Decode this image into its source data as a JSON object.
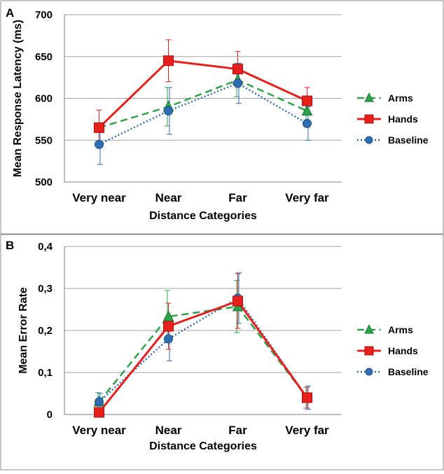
{
  "chart_data": [
    {
      "panel_label": "A",
      "type": "line",
      "title": "",
      "xlabel": "Distance Categories",
      "ylabel": "Mean Response Latency (ms)",
      "categories": [
        "Very near",
        "Near",
        "Far",
        "Very far"
      ],
      "ylim": [
        500,
        700
      ],
      "yticks": [
        500,
        550,
        600,
        650,
        700
      ],
      "ytick_labels": [
        "500",
        "550",
        "600",
        "650",
        "700"
      ],
      "grid": true,
      "legend": "right",
      "series": [
        {
          "name": "Arms",
          "values": [
            565,
            590,
            622,
            585
          ],
          "errors": [
            null,
            23,
            20,
            18
          ],
          "color": "#2ca34a",
          "marker": "triangle",
          "dash": "dashed"
        },
        {
          "name": "Hands",
          "values": [
            565,
            645,
            635,
            597
          ],
          "errors": [
            21,
            25,
            21,
            16
          ],
          "color": "#e8201c",
          "marker": "square",
          "dash": "solid"
        },
        {
          "name": "Baseline",
          "values": [
            545,
            585,
            618,
            570
          ],
          "errors": [
            24,
            28,
            24,
            20
          ],
          "color": "#2f6eb5",
          "marker": "circle",
          "dash": "dotted"
        }
      ]
    },
    {
      "panel_label": "B",
      "type": "line",
      "title": "",
      "xlabel": "Distance Categories",
      "ylabel": "Mean Error Rate",
      "categories": [
        "Very near",
        "Near",
        "Far",
        "Very far"
      ],
      "ylim": [
        0,
        0.4
      ],
      "yticks": [
        0,
        0.1,
        0.2,
        0.3,
        0.4
      ],
      "ytick_labels": [
        "0",
        "0,1",
        "0,2",
        "0,3",
        "0,4"
      ],
      "grid": true,
      "legend": "right",
      "series": [
        {
          "name": "Arms",
          "values": [
            0.03,
            0.233,
            0.257,
            0.04
          ],
          "errors": [
            0.022,
            0.062,
            0.062,
            0.025
          ],
          "color": "#2ca34a",
          "marker": "triangle",
          "dash": "dashed"
        },
        {
          "name": "Hands",
          "values": [
            0.005,
            0.21,
            0.27,
            0.04
          ],
          "errors": [
            null,
            0.055,
            0.065,
            0.025
          ],
          "color": "#e8201c",
          "marker": "square",
          "dash": "solid"
        },
        {
          "name": "Baseline",
          "values": [
            0.03,
            0.18,
            0.277,
            0.04
          ],
          "errors": [
            0.02,
            0.052,
            0.06,
            0.028
          ],
          "color": "#2f6eb5",
          "marker": "circle",
          "dash": "dotted"
        }
      ]
    }
  ]
}
